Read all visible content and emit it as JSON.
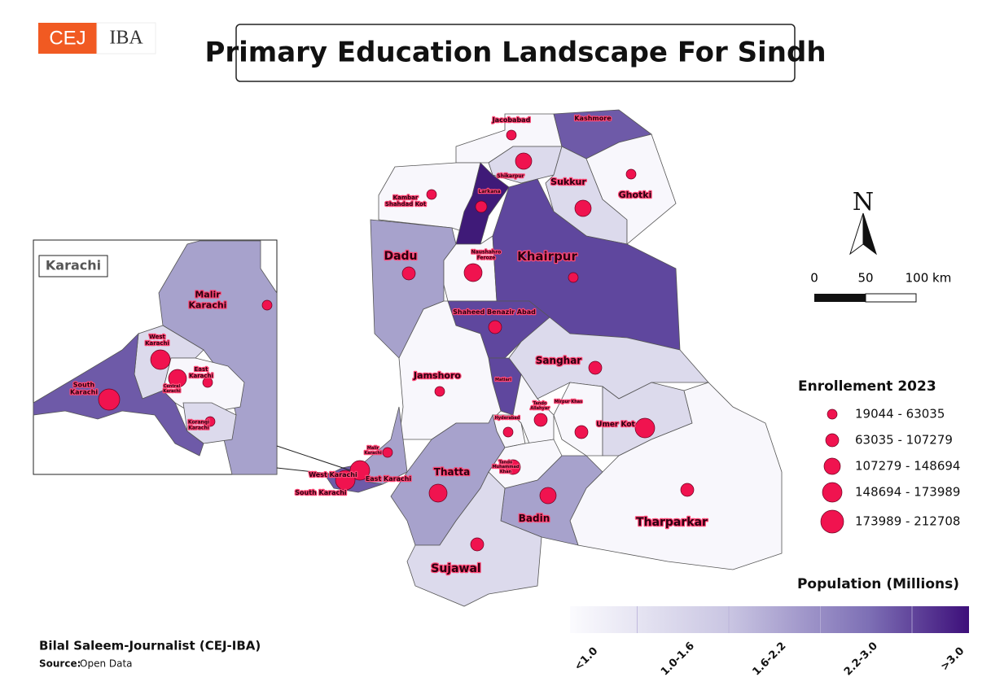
{
  "header": {
    "logo": {
      "left": "CEJ",
      "right": "IBA"
    },
    "title": "Primary Education Landscape For Sindh"
  },
  "map": {
    "districts": [
      {
        "label": [
          "Jacobabad"
        ]
      },
      {
        "label": [
          "Kashmore"
        ]
      },
      {
        "label": [
          "Shikarpur"
        ]
      },
      {
        "label": [
          "Sukkur"
        ]
      },
      {
        "label": [
          "Ghotki"
        ]
      },
      {
        "label": [
          "Kambar",
          "Shahdad Kot"
        ]
      },
      {
        "label": [
          "Larkana"
        ]
      },
      {
        "label": [
          "Dadu"
        ]
      },
      {
        "label": [
          "Naushahro",
          "Feroze"
        ]
      },
      {
        "label": [
          "Khairpur"
        ]
      },
      {
        "label": [
          "Shaheed Benazir Abad"
        ]
      },
      {
        "label": [
          "Sanghar"
        ]
      },
      {
        "label": [
          "Jamshoro"
        ]
      },
      {
        "label": [
          "Matiari"
        ]
      },
      {
        "label": [
          "Tando",
          "Allahyar"
        ]
      },
      {
        "label": [
          "Mirpur Khas"
        ]
      },
      {
        "label": [
          "Hyderabad"
        ]
      },
      {
        "label": [
          "Umer Kot"
        ]
      },
      {
        "label": [
          "Malir",
          "Karachi"
        ]
      },
      {
        "label": [
          "West Karachi"
        ]
      },
      {
        "label": [
          "East Karachi"
        ]
      },
      {
        "label": [
          "South Karachi"
        ]
      },
      {
        "label": [
          "Thatta"
        ]
      },
      {
        "label": [
          "Tando",
          "Muhammad",
          "Khan"
        ]
      },
      {
        "label": [
          "Badin"
        ]
      },
      {
        "label": [
          "Tharparkar"
        ]
      },
      {
        "label": [
          "Sujawal"
        ]
      }
    ],
    "inset": {
      "title": "Karachi",
      "labels": [
        {
          "label": [
            "Malir",
            "Karachi"
          ]
        },
        {
          "label": [
            "West",
            "Karachi"
          ]
        },
        {
          "label": [
            "East",
            "Karachi"
          ]
        },
        {
          "label": [
            "South",
            "Karachi"
          ]
        },
        {
          "label": [
            "Central",
            "Karachi"
          ]
        },
        {
          "label": [
            "Korangi",
            "Karachi"
          ]
        }
      ]
    }
  },
  "north_arrow": "N",
  "scale_bar": [
    "0",
    "50",
    "100 km"
  ],
  "legend_enrollment": {
    "title": "Enrollement 2023",
    "items": [
      "19044 - 63035",
      "63035 - 107279",
      "107279 - 148694",
      "148694 - 173989",
      "173989 - 212708"
    ]
  },
  "legend_population": {
    "title": "Population (Millions)",
    "items": [
      "<1.0",
      "1.0-1.6",
      "1.6-2.2",
      "2.2-3.0",
      ">3.0"
    ]
  },
  "footer": {
    "credit": "Bilal Saleem-Journalist (CEJ-IBA)",
    "source_label": "Source:",
    "source": "Open Data"
  }
}
